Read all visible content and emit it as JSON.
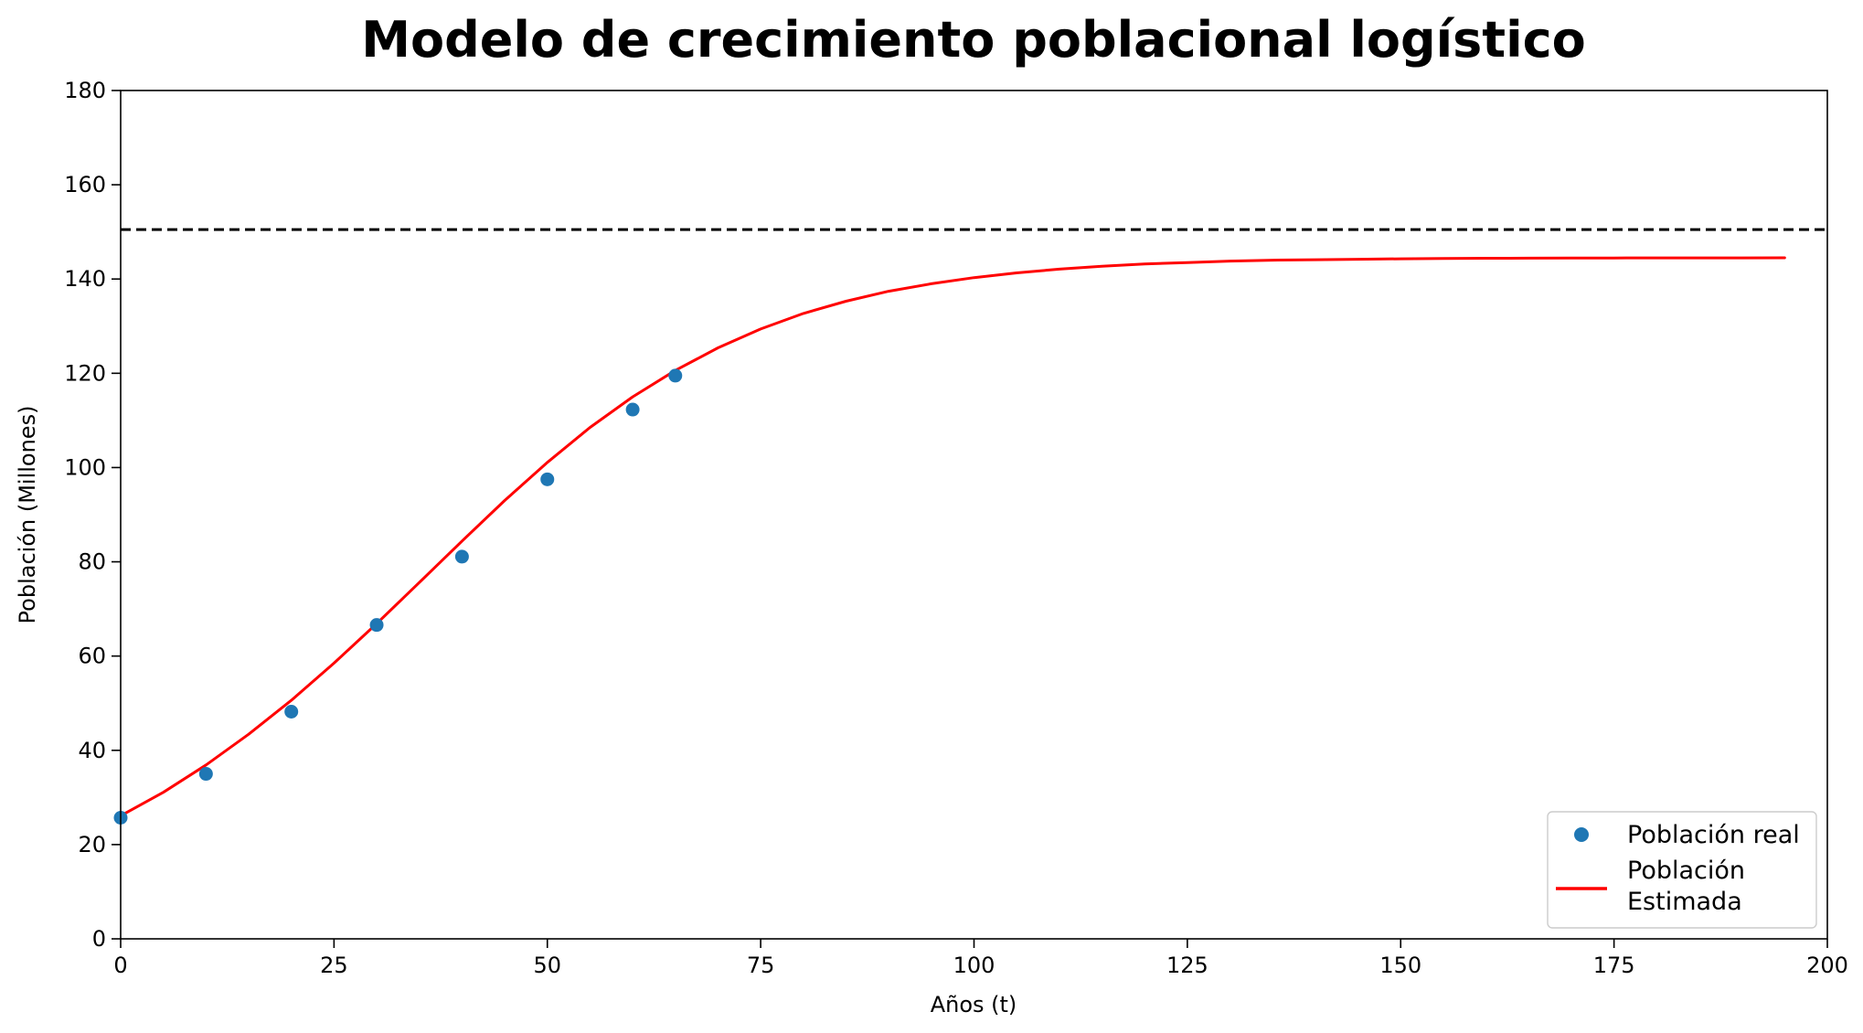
{
  "chart_data": {
    "type": "scatter",
    "title": "Modelo de crecimiento poblacional logístico",
    "xlabel": "Años (t)",
    "ylabel": "Población (Millones)",
    "xlim": [
      0,
      200
    ],
    "ylim": [
      0,
      180
    ],
    "xticks": [
      0,
      25,
      50,
      75,
      100,
      125,
      150,
      175,
      200
    ],
    "yticks": [
      0,
      20,
      40,
      60,
      80,
      100,
      120,
      140,
      160,
      180
    ],
    "grid": false,
    "legend_position": "lower-right",
    "series": [
      {
        "name": "Población real",
        "kind": "scatter",
        "color": "#1f77b4",
        "x": [
          0,
          10,
          20,
          30,
          40,
          50,
          60,
          65
        ],
        "y": [
          25.7,
          35.0,
          48.2,
          66.6,
          81.1,
          97.5,
          112.3,
          119.5
        ]
      },
      {
        "name": "Población\nEstimada",
        "legend_lines": [
          "Población",
          "Estimada"
        ],
        "kind": "line",
        "color": "#ff0000",
        "x": [
          0,
          5,
          10,
          15,
          20,
          25,
          30,
          35,
          40,
          45,
          50,
          55,
          60,
          65,
          70,
          75,
          80,
          85,
          90,
          95,
          100,
          105,
          110,
          115,
          120,
          125,
          130,
          135,
          140,
          145,
          150,
          155,
          160,
          165,
          170,
          175,
          180,
          185,
          190,
          195
        ],
        "y": [
          26.1,
          31.1,
          36.9,
          43.4,
          50.6,
          58.5,
          66.9,
          75.6,
          84.4,
          93.0,
          101.1,
          108.5,
          115.0,
          120.6,
          125.4,
          129.4,
          132.7,
          135.3,
          137.4,
          139.0,
          140.3,
          141.3,
          142.1,
          142.7,
          143.2,
          143.5,
          143.8,
          144.0,
          144.1,
          144.2,
          144.3,
          144.35,
          144.4,
          144.43,
          144.45,
          144.47,
          144.48,
          144.49,
          144.49,
          144.5
        ]
      }
    ],
    "reference_lines": [
      {
        "kind": "hline",
        "y": 150.5,
        "color": "#000000",
        "style": "dashed"
      }
    ]
  }
}
